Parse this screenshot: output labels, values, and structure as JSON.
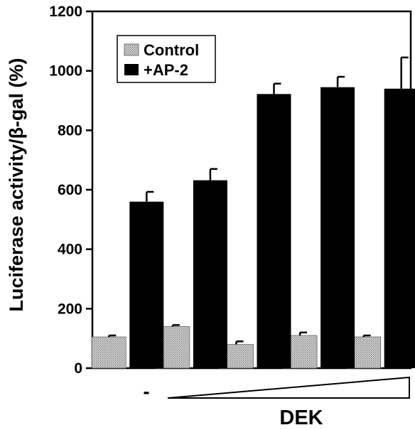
{
  "chart_data": {
    "type": "bar",
    "ylabel": "Luciferase activity/β-gal (%)",
    "ylim": [
      0,
      1200
    ],
    "yticks": [
      "0",
      "200",
      "400",
      "600",
      "800",
      "1000",
      "1200"
    ],
    "grid": false,
    "legend_position": "top-left",
    "categories": [
      "",
      "",
      "",
      "",
      ""
    ],
    "series": [
      {
        "name": "Control",
        "color": "#c8c8c8",
        "pattern": "dotted",
        "values": [
          105,
          140,
          80,
          110,
          105
        ],
        "errors": [
          5,
          5,
          10,
          10,
          5
        ]
      },
      {
        "name": "+AP-2",
        "color": "#000000",
        "pattern": "solid",
        "values": [
          560,
          632,
          922,
          945,
          940
        ],
        "errors": [
          33,
          38,
          35,
          35,
          105
        ]
      }
    ],
    "x_annotations": {
      "minus_label": "-",
      "dek_label": "DEK",
      "gradient": "increasing wedge"
    }
  }
}
